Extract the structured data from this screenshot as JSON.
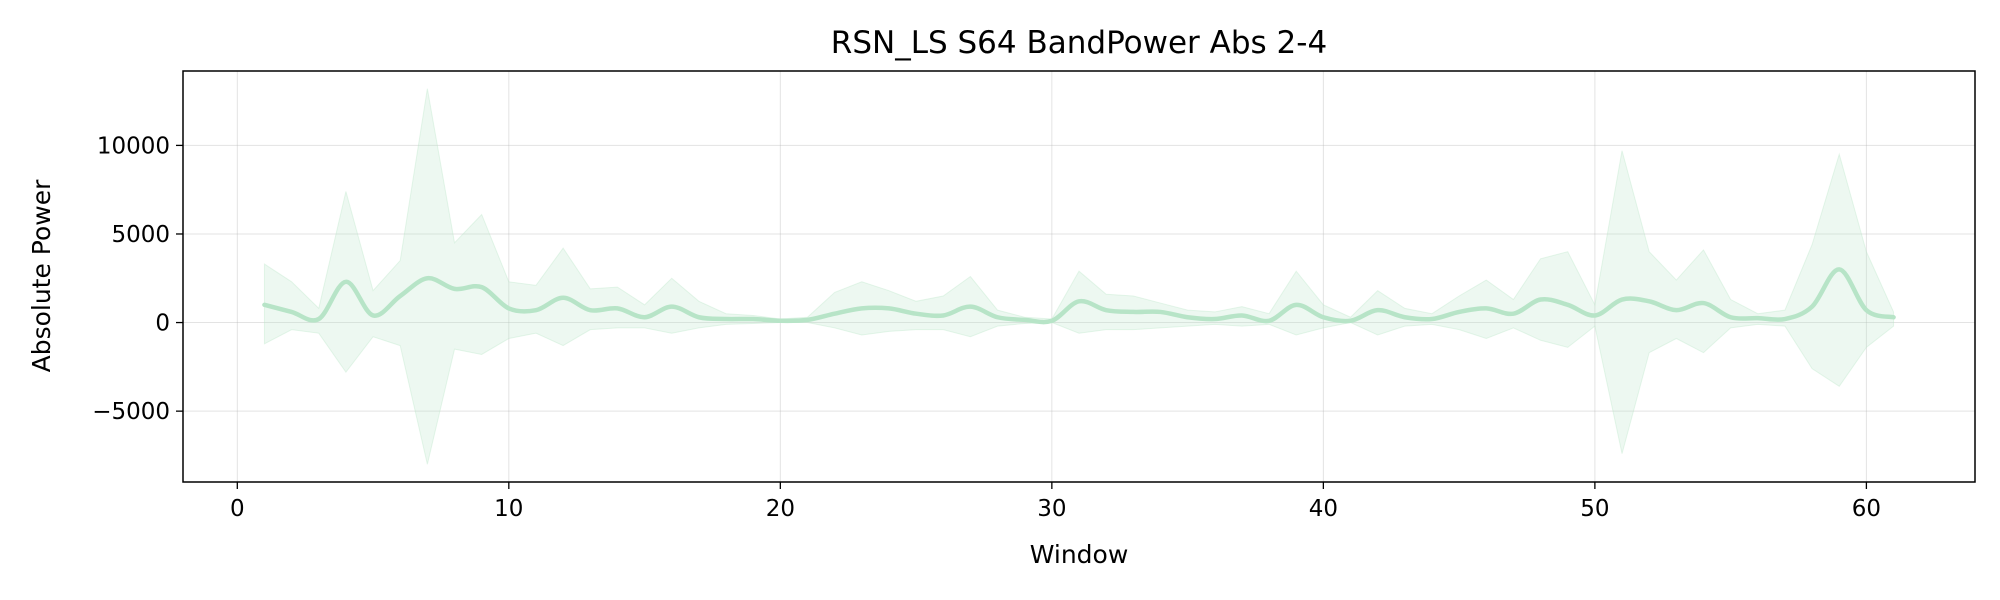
{
  "chart_data": {
    "type": "line",
    "title": "RSN_LS S64 BandPower Abs 2-4",
    "xlabel": "Window",
    "ylabel": "Absolute Power",
    "xlim": [
      -2,
      64
    ],
    "ylim": [
      -9000,
      14200
    ],
    "xticks": [
      0,
      10,
      20,
      30,
      40,
      50,
      60
    ],
    "yticks": [
      -5000,
      0,
      5000,
      10000
    ],
    "ytick_labels": [
      "−5000",
      "0",
      "5000",
      "10000"
    ],
    "grid": true,
    "line_color": "#b7e4c7",
    "band_color": "#b7e4c7",
    "series": [
      {
        "x": [
          1,
          2,
          3,
          4,
          5,
          6,
          7,
          8,
          9,
          10,
          11,
          12,
          13,
          14,
          15,
          16,
          17,
          18,
          19,
          20,
          21,
          22,
          23,
          24,
          25,
          26,
          27,
          28,
          29,
          30,
          31,
          32,
          33,
          34,
          35,
          36,
          37,
          38,
          39,
          40,
          41,
          42,
          43,
          44,
          45,
          46,
          47,
          48,
          49,
          50,
          51,
          52,
          53,
          54,
          55,
          56,
          57,
          58,
          59,
          60,
          61
        ],
        "mean": [
          1000,
          600,
          200,
          2300,
          400,
          1500,
          2500,
          1900,
          2000,
          800,
          700,
          1400,
          700,
          800,
          300,
          900,
          300,
          200,
          200,
          100,
          150,
          500,
          800,
          800,
          500,
          400,
          900,
          300,
          150,
          100,
          1200,
          700,
          600,
          600,
          300,
          200,
          400,
          100,
          1000,
          300,
          100,
          700,
          300,
          200,
          600,
          800,
          500,
          1300,
          1000,
          400,
          1300,
          1200,
          700,
          1100,
          300,
          250,
          200,
          900,
          3000,
          700,
          300
        ],
        "upper": [
          3300,
          2300,
          800,
          7400,
          1800,
          3500,
          13200,
          4500,
          6100,
          2300,
          2100,
          4200,
          1900,
          2000,
          1000,
          2500,
          1200,
          500,
          400,
          200,
          300,
          1700,
          2300,
          1800,
          1200,
          1500,
          2600,
          700,
          300,
          200,
          2900,
          1600,
          1500,
          1100,
          700,
          600,
          900,
          500,
          2900,
          1000,
          300,
          1800,
          800,
          500,
          1500,
          2400,
          1300,
          3600,
          4000,
          1000,
          9700,
          4000,
          2400,
          4100,
          1300,
          500,
          700,
          4400,
          9500,
          4000,
          600
        ],
        "lower": [
          -1200,
          -400,
          -600,
          -2800,
          -800,
          -1300,
          -8000,
          -1500,
          -1800,
          -900,
          -600,
          -1300,
          -400,
          -300,
          -300,
          -600,
          -300,
          -100,
          -50,
          0,
          0,
          -300,
          -700,
          -500,
          -400,
          -400,
          -800,
          -200,
          -50,
          0,
          -600,
          -400,
          -400,
          -300,
          -200,
          -100,
          -200,
          -100,
          -700,
          -300,
          0,
          -700,
          -200,
          -100,
          -400,
          -900,
          -300,
          -1000,
          -1400,
          -200,
          -7400,
          -1700,
          -900,
          -1700,
          -300,
          -100,
          -200,
          -2600,
          -3600,
          -1400,
          -200
        ]
      }
    ]
  }
}
